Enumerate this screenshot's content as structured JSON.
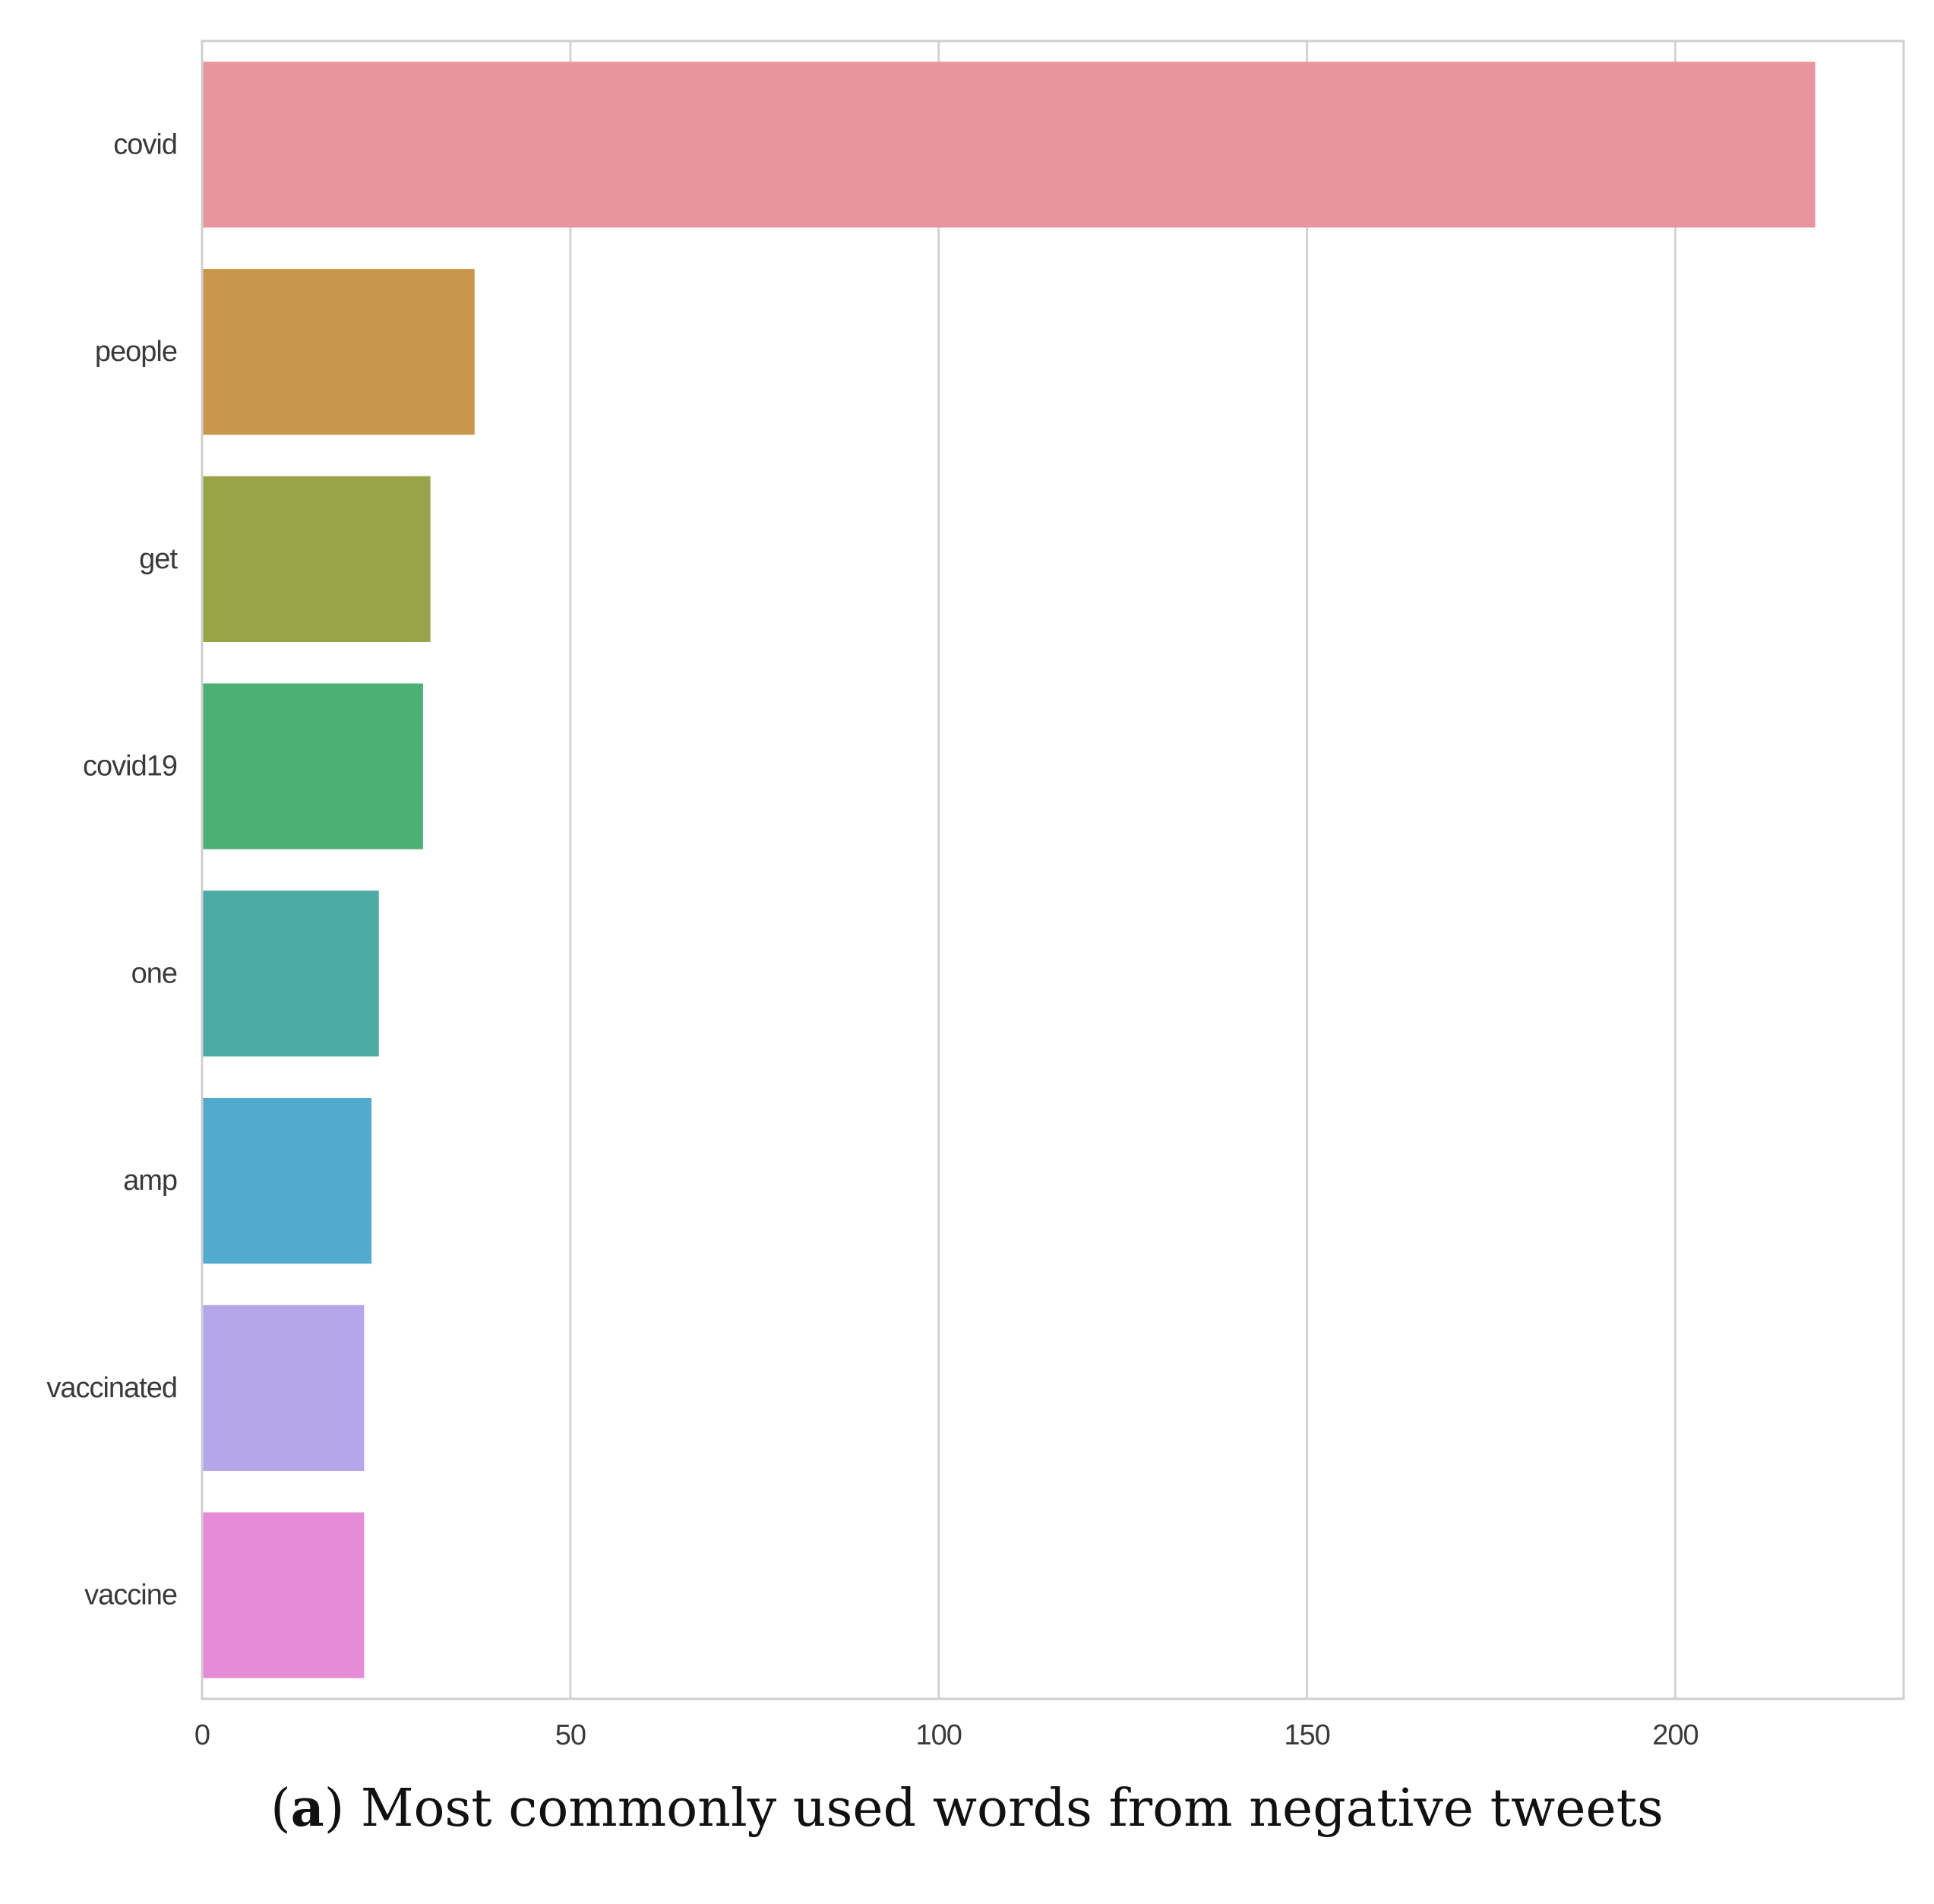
{
  "caption": {
    "open_paren": "(",
    "letter": "a",
    "close_and_text": ") Most commonly used words from negative tweets"
  },
  "chart_data": {
    "type": "bar",
    "orientation": "horizontal",
    "categories": [
      "covid",
      "people",
      "get",
      "covid19",
      "one",
      "amp",
      "vaccinated",
      "vaccine"
    ],
    "values": [
      219,
      37,
      31,
      30,
      24,
      23,
      22,
      22
    ],
    "colors": [
      "#e8959f",
      "#c9974c",
      "#98a447",
      "#4caf73",
      "#4caaa5",
      "#52aacd",
      "#b4a6e8",
      "#e68cd6"
    ],
    "xlim": [
      0,
      231
    ],
    "xticks": [
      0,
      50,
      100,
      150,
      200
    ],
    "xlabel": "",
    "ylabel": "",
    "title": "",
    "grid": true,
    "grid_axis": "x",
    "style": "seaborn-whitegrid"
  }
}
